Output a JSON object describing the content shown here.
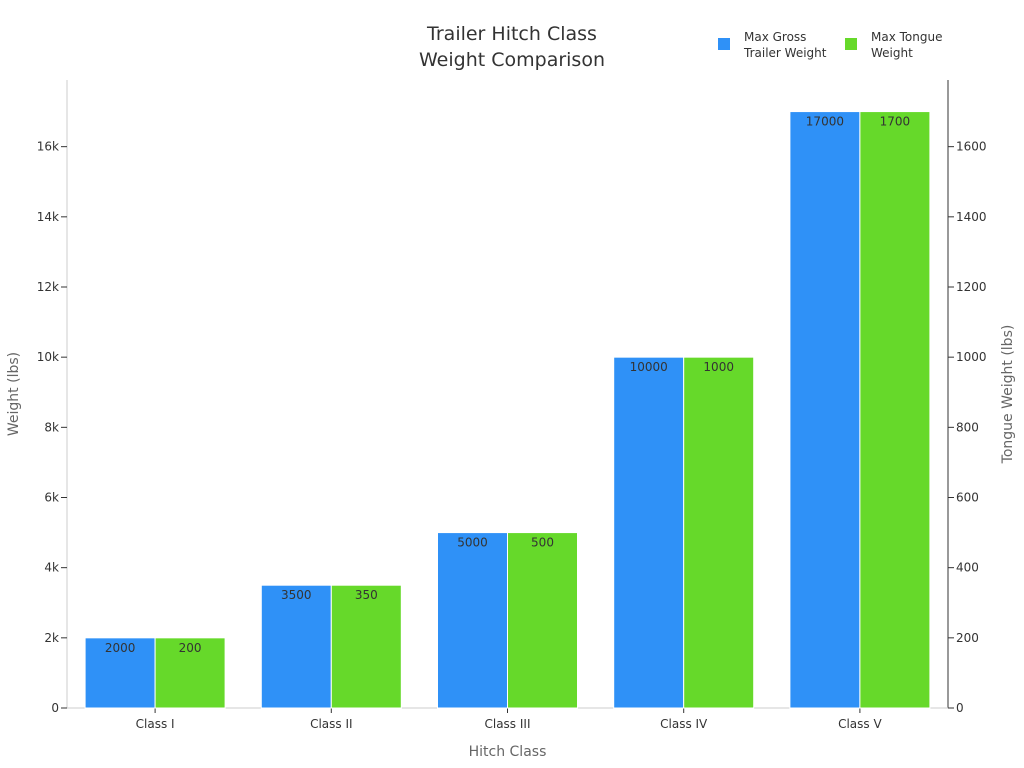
{
  "chart_data": {
    "type": "bar",
    "title_lines": [
      "Trailer Hitch Class",
      "Weight Comparison"
    ],
    "xlabel": "Hitch Class",
    "ylabel": "Weight (lbs)",
    "y2label": "Tongue Weight (lbs)",
    "categories": [
      "Class I",
      "Class II",
      "Class III",
      "Class IV",
      "Class V"
    ],
    "series": [
      {
        "name_lines": [
          "Max Gross",
          "Trailer Weight"
        ],
        "axis": "left",
        "color": "#2f91f7",
        "values": [
          2000,
          3500,
          5000,
          10000,
          17000
        ]
      },
      {
        "name_lines": [
          "Max Tongue",
          "Weight"
        ],
        "axis": "right",
        "color": "#66d92a",
        "values": [
          200,
          350,
          500,
          1000,
          1700
        ]
      }
    ],
    "ylim": [
      0,
      17900
    ],
    "y2lim": [
      0,
      1790
    ],
    "yticks": [
      {
        "value": 0,
        "label": "0"
      },
      {
        "value": 2000,
        "label": "2k"
      },
      {
        "value": 4000,
        "label": "4k"
      },
      {
        "value": 6000,
        "label": "6k"
      },
      {
        "value": 8000,
        "label": "8k"
      },
      {
        "value": 10000,
        "label": "10k"
      },
      {
        "value": 12000,
        "label": "12k"
      },
      {
        "value": 14000,
        "label": "14k"
      },
      {
        "value": 16000,
        "label": "16k"
      }
    ],
    "y2ticks": [
      {
        "value": 0,
        "label": "0"
      },
      {
        "value": 200,
        "label": "200"
      },
      {
        "value": 400,
        "label": "400"
      },
      {
        "value": 600,
        "label": "600"
      },
      {
        "value": 800,
        "label": "800"
      },
      {
        "value": 1000,
        "label": "1000"
      },
      {
        "value": 1200,
        "label": "1200"
      },
      {
        "value": 1400,
        "label": "1400"
      },
      {
        "value": 1600,
        "label": "1600"
      }
    ],
    "grid": false,
    "legend_position": "top-right",
    "data_labels": true
  }
}
